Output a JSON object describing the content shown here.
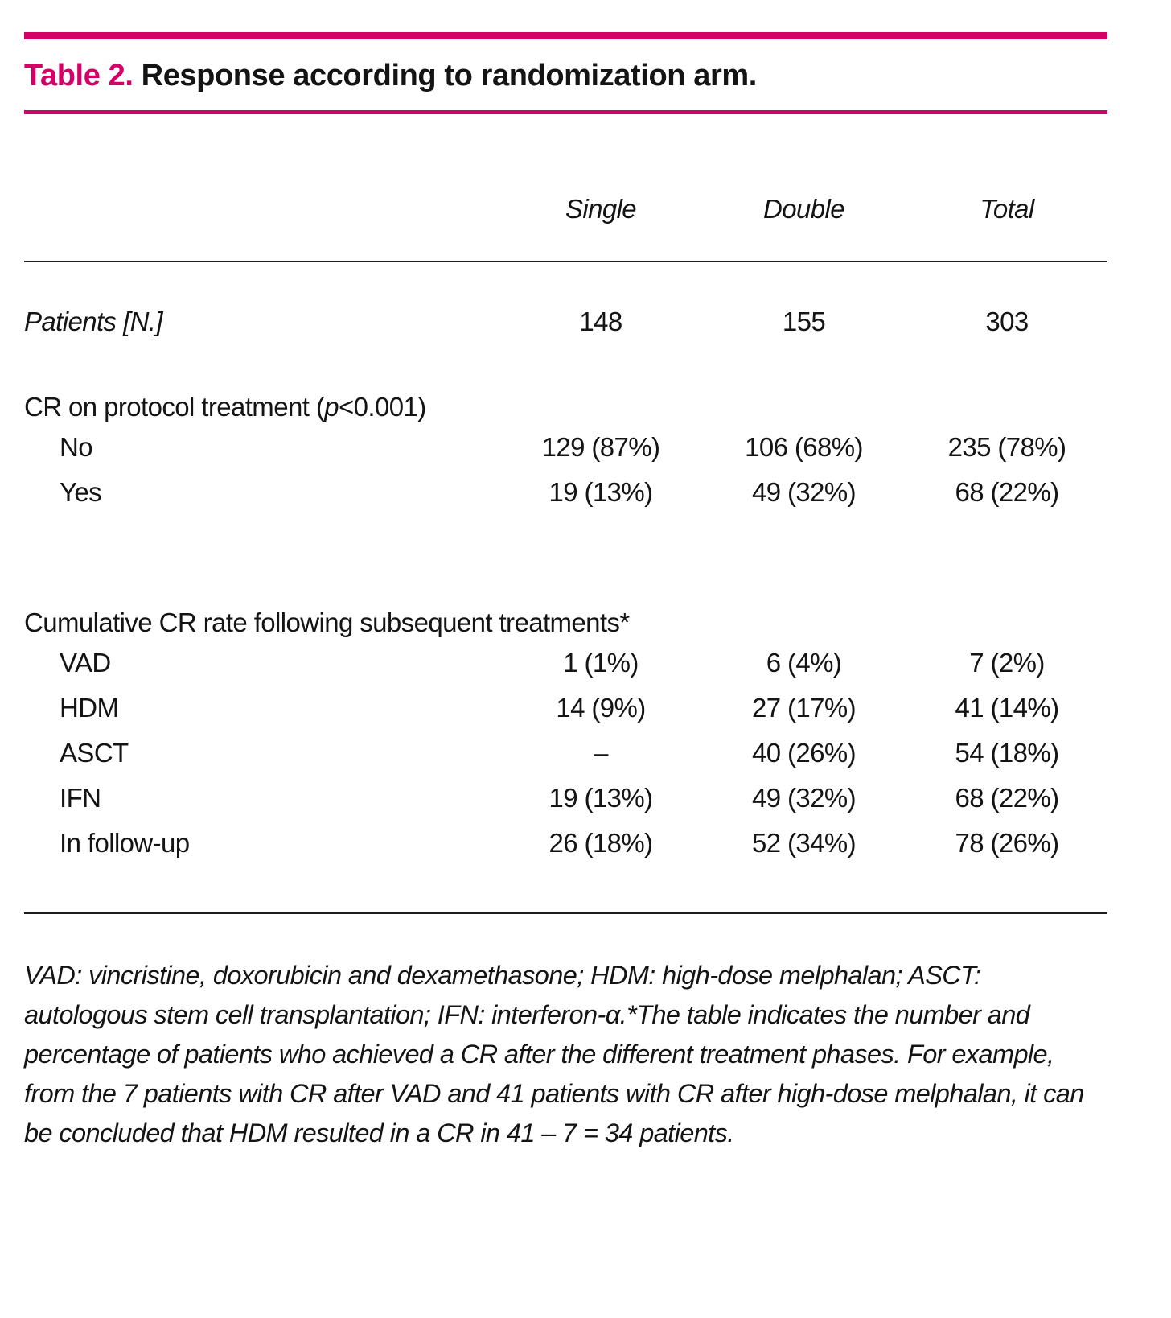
{
  "colors": {
    "accent": "#d40068",
    "text": "#141414"
  },
  "title": {
    "label": "Table 2.",
    "text": "Response according to randomization arm."
  },
  "header": {
    "col1": "Single",
    "col2": "Double",
    "col3": "Total"
  },
  "patients": {
    "label": "Patients [N.]",
    "single": "148",
    "double": "155",
    "total": "303"
  },
  "section_cr": {
    "heading_pre": "CR on protocol treatment (",
    "heading_p": "p",
    "heading_post": "<0.001)",
    "rows": [
      {
        "label": "No",
        "single": "129 (87%)",
        "double": "106 (68%)",
        "total": "235 (78%)"
      },
      {
        "label": "Yes",
        "single": "19 (13%)",
        "double": "49 (32%)",
        "total": "68 (22%)"
      }
    ]
  },
  "section_cum": {
    "heading": "Cumulative CR rate following subsequent treatments*",
    "rows": [
      {
        "label": "VAD",
        "single": "1 (1%)",
        "double": "6 (4%)",
        "total": "7 (2%)"
      },
      {
        "label": "HDM",
        "single": "14 (9%)",
        "double": "27 (17%)",
        "total": "41 (14%)"
      },
      {
        "label": "ASCT",
        "single": "–",
        "double": "40 (26%)",
        "total": "54 (18%)"
      },
      {
        "label": "IFN",
        "single": "19 (13%)",
        "double": "49 (32%)",
        "total": "68 (22%)"
      },
      {
        "label": "In follow-up",
        "single": "26 (18%)",
        "double": "52 (34%)",
        "total": "78 (26%)"
      }
    ]
  },
  "footnote": "VAD: vincristine, doxorubicin and dexamethasone; HDM: high-dose melphalan; ASCT: autologous stem cell transplantation; IFN: interferon-α.*The table indicates the number and percentage of patients who achieved a CR after the different treatment phases. For example, from the 7 patients with CR after VAD and 41 patients with CR after high-dose melphalan, it can be concluded that HDM resulted in a CR in 41 – 7 = 34 patients."
}
